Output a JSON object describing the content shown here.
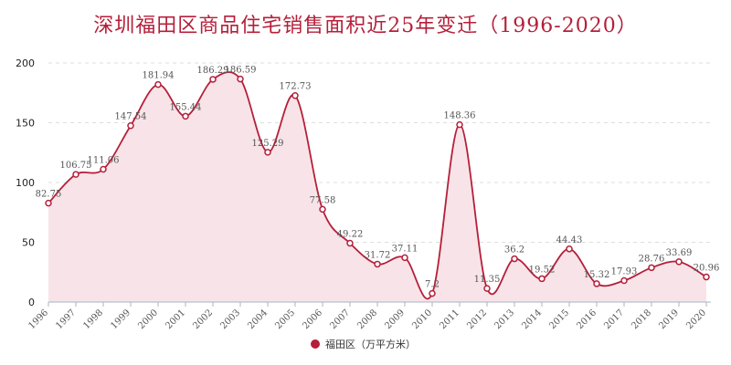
{
  "chart_data": {
    "type": "area",
    "title": "深圳福田区商品住宅销售面积近25年变迁（1996-2020）",
    "categories": [
      "1996",
      "1997",
      "1998",
      "1999",
      "2000",
      "2001",
      "2002",
      "2003",
      "2004",
      "2005",
      "2006",
      "2007",
      "2008",
      "2009",
      "2010",
      "2011",
      "2012",
      "2013",
      "2014",
      "2015",
      "2016",
      "2017",
      "2018",
      "2019",
      "2020"
    ],
    "series": [
      {
        "name": "福田区（万平方米）",
        "values": [
          82.75,
          106.75,
          111.06,
          147.54,
          181.94,
          155.44,
          186.29,
          186.59,
          125.29,
          172.73,
          77.58,
          49.22,
          31.72,
          37.11,
          7.2,
          148.36,
          11.35,
          36.2,
          19.52,
          44.43,
          15.32,
          17.93,
          28.76,
          33.69,
          20.96
        ],
        "labels": [
          "82.75",
          "106.75",
          "111.06",
          "147.54",
          "181.94",
          "155.44",
          "186.29",
          "186.59",
          "125.29",
          "172.73",
          "77.58",
          "49.22",
          "31.72",
          "37.11",
          "7.2",
          "148.36",
          "11.35",
          "36.2",
          "19.52",
          "44.43",
          "15.32",
          "17.93",
          "28.76",
          "33.69",
          "20.96"
        ]
      }
    ],
    "ylim": [
      0,
      200
    ],
    "yticks": [
      "0",
      "50",
      "100",
      "150",
      "200"
    ],
    "grid": true,
    "legend_position": "bottom-center",
    "colors": {
      "line": "#b51f3a",
      "area": "#f8e4e8",
      "grid": "#dddddd",
      "axis": "#aab4c4"
    }
  }
}
